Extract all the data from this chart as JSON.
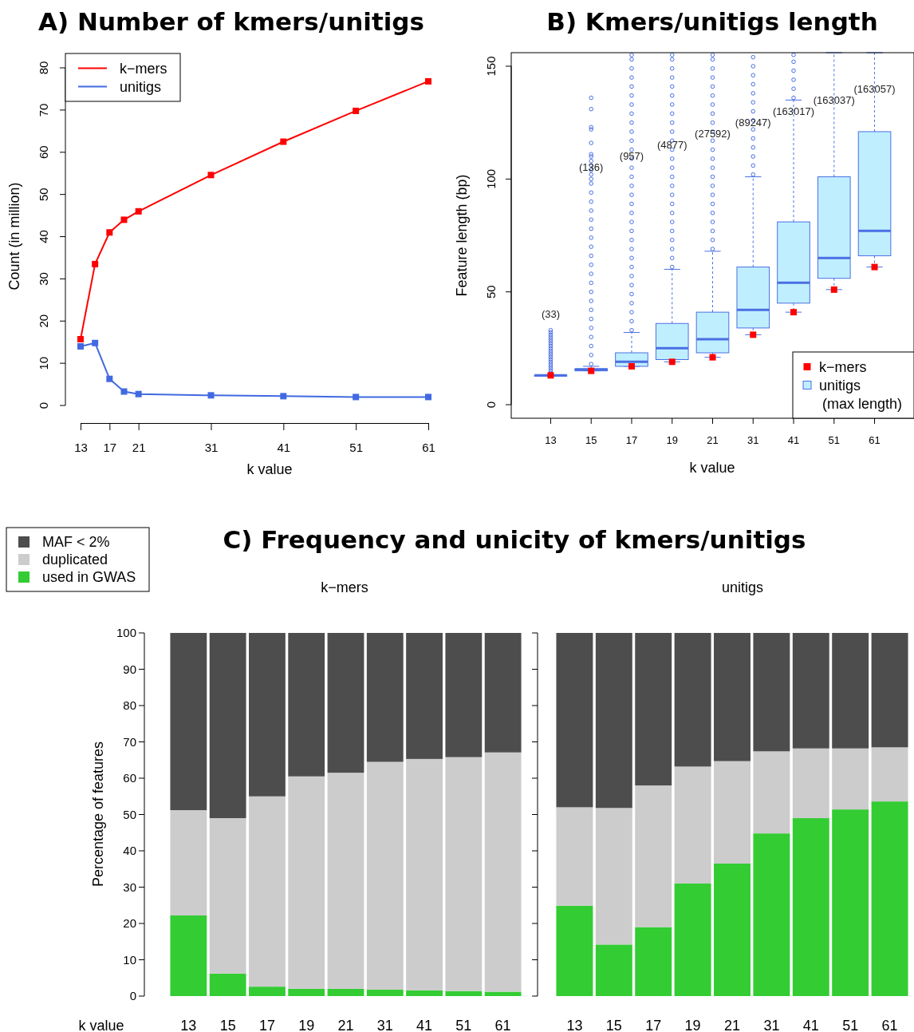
{
  "chart_data": [
    {
      "type": "line",
      "title": "A) Number of kmers/unitigs",
      "xlabel": "k value",
      "ylabel": "Count (in million)",
      "x": [
        13,
        15,
        17,
        19,
        21,
        31,
        41,
        51,
        61
      ],
      "xlim": [
        13,
        61
      ],
      "xticks": [
        13,
        17,
        21,
        31,
        41,
        51,
        61
      ],
      "ylim": [
        0,
        80
      ],
      "yticks": [
        0,
        10,
        20,
        30,
        40,
        50,
        60,
        70,
        80
      ],
      "marker": "square",
      "legend": "top left",
      "series": [
        {
          "name": "k−mers",
          "color": "#ff0000",
          "values": [
            15.7,
            33.5,
            41,
            44,
            46,
            54.6,
            62.5,
            69.8,
            76.8
          ]
        },
        {
          "name": "unitigs",
          "color": "#4169e1",
          "values": [
            14,
            14.8,
            6.3,
            3.3,
            2.7,
            2.4,
            2.2,
            2.0,
            2.0
          ]
        }
      ]
    },
    {
      "type": "box",
      "title": "B) Kmers/unitigs length",
      "xlabel": "k value",
      "ylabel": "Feature length (bp)",
      "categories": [
        "13",
        "15",
        "17",
        "19",
        "21",
        "31",
        "41",
        "51",
        "61"
      ],
      "ylim": [
        -6,
        156
      ],
      "yticks": [
        0,
        50,
        100,
        150
      ],
      "marker": "square",
      "legend": "bottom right",
      "series": [
        {
          "type": "scatter",
          "name": "k−mers",
          "color": "#ff0000",
          "x": [
            "13",
            "15",
            "17",
            "19",
            "21",
            "31",
            "41",
            "51",
            "61"
          ],
          "values": [
            13,
            15,
            17,
            19,
            21,
            31,
            41,
            51,
            61
          ]
        },
        {
          "name": "unitigs (max length)",
          "color": "#bfefff",
          "boxes": [
            {
              "low": 13,
              "q1": 13,
              "median": 13,
              "q3": 13,
              "high": 13,
              "outliers": [
                14,
                15,
                16,
                17,
                18,
                19,
                20,
                21,
                22,
                23,
                24,
                25,
                26,
                27,
                28,
                29,
                30,
                31,
                32,
                33
              ]
            },
            {
              "low": 15,
              "q1": 15,
              "median": 15.5,
              "q3": 16,
              "high": 17,
              "outliers": [
                18,
                22,
                26,
                30,
                34,
                38,
                42,
                46,
                50,
                54,
                58,
                62,
                66,
                70,
                74,
                78,
                82,
                86,
                90,
                94,
                98,
                100,
                102,
                104,
                106,
                108,
                110,
                111,
                116,
                122,
                123,
                131,
                136
              ]
            },
            {
              "low": 17,
              "q1": 17,
              "median": 19,
              "q3": 23,
              "high": 32,
              "outliers": [
                33,
                37,
                41,
                45,
                49,
                53,
                57,
                61,
                65,
                69,
                73,
                77,
                81,
                85,
                89,
                93,
                97,
                101,
                105,
                109,
                113,
                117,
                121,
                125,
                129,
                133,
                137,
                141,
                145,
                149,
                153,
                155
              ]
            },
            {
              "low": 19,
              "q1": 20,
              "median": 25,
              "q3": 36,
              "high": 60,
              "outliers": [
                61,
                65,
                69,
                73,
                77,
                81,
                85,
                89,
                93,
                97,
                101,
                105,
                109,
                113,
                117,
                121,
                125,
                129,
                133,
                137,
                141,
                145,
                149,
                153,
                155
              ]
            },
            {
              "low": 21,
              "q1": 23,
              "median": 29,
              "q3": 41,
              "high": 68,
              "outliers": [
                69,
                73,
                77,
                81,
                85,
                89,
                93,
                97,
                101,
                105,
                109,
                113,
                117,
                121,
                125,
                129,
                133,
                137,
                141,
                145,
                149,
                153,
                155
              ]
            },
            {
              "low": 31,
              "q1": 34,
              "median": 42,
              "q3": 61,
              "high": 101,
              "outliers": [
                102,
                106,
                110,
                114,
                118,
                122,
                126,
                130,
                134,
                138,
                142,
                146,
                150,
                154
              ]
            },
            {
              "low": 41,
              "q1": 45,
              "median": 54,
              "q3": 81,
              "high": 135,
              "outliers": [
                136,
                140,
                144,
                148,
                152,
                155
              ]
            },
            {
              "low": 51,
              "q1": 56,
              "median": 65,
              "q3": 101,
              "high": 156
            },
            {
              "low": 61,
              "q1": 66,
              "median": 77,
              "q3": 121,
              "high": 156
            }
          ]
        }
      ],
      "annotations": [
        "(33)",
        "(136)",
        "(957)",
        "(4877)",
        "(27592)",
        "(89247)",
        "(163017)",
        "(163037)",
        "(163057)"
      ]
    },
    {
      "type": "bar",
      "title": "C) Frequency and unicity of kmers/unitigs",
      "subtitle": "k−mers",
      "xlabel": "k value",
      "ylabel": "Percentage of features",
      "categories": [
        "13",
        "15",
        "17",
        "19",
        "21",
        "31",
        "41",
        "51",
        "61"
      ],
      "stacked": true,
      "ylim": [
        0,
        100
      ],
      "yticks": [
        0,
        10,
        20,
        30,
        40,
        50,
        60,
        70,
        80,
        90,
        100
      ],
      "legend": "top left",
      "series": [
        {
          "name": "used in GWAS",
          "color": "#33cc33",
          "values": [
            22.2,
            6.2,
            2.6,
            2,
            2,
            1.8,
            1.6,
            1.4,
            1.2
          ]
        },
        {
          "name": "duplicated",
          "color": "#cccccc",
          "values": [
            29,
            42.8,
            52.4,
            58.5,
            59.5,
            62.7,
            63.7,
            64.4,
            65.9
          ]
        },
        {
          "name": "MAF < 2%",
          "color": "#4d4d4d",
          "values": [
            48.8,
            51,
            45,
            39.5,
            38.5,
            35.5,
            34.7,
            34.2,
            32.9
          ]
        }
      ]
    },
    {
      "type": "bar",
      "subtitle": "unitigs",
      "categories": [
        "13",
        "15",
        "17",
        "19",
        "21",
        "31",
        "41",
        "51",
        "61"
      ],
      "stacked": true,
      "ylim": [
        0,
        100
      ],
      "yticks": [
        0,
        10,
        20,
        30,
        40,
        50,
        60,
        70,
        80,
        90,
        100
      ],
      "tick_labels": "x",
      "series": [
        {
          "color": "#33cc33",
          "values": [
            24.9,
            14.2,
            19.0,
            31.0,
            36.5,
            44.8,
            49.0,
            51.4,
            53.6
          ]
        },
        {
          "color": "#cccccc",
          "values": [
            27.1,
            37.6,
            39.0,
            32.2,
            28.2,
            22.6,
            19.2,
            16.8,
            14.9
          ]
        },
        {
          "color": "#4d4d4d",
          "values": [
            48,
            48.2,
            42,
            36.8,
            35.3,
            32.6,
            31.8,
            31.8,
            31.5
          ]
        }
      ]
    }
  ]
}
